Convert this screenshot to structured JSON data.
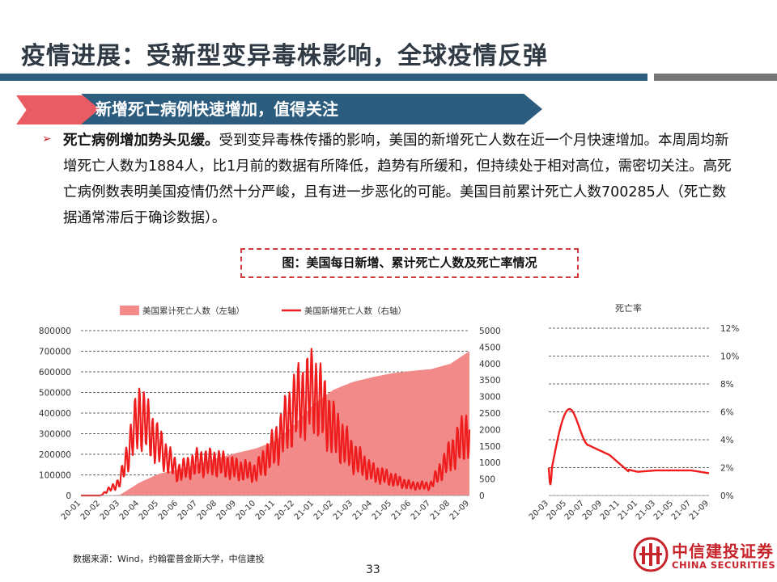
{
  "header": {
    "title": "疫情进展：受新型变异毒株影响，全球疫情反弹",
    "subtitle": "新增死亡病例快速增加，值得关注"
  },
  "body": {
    "bold_lead": "死亡病例增加势头见缓。",
    "text": "受到变异毒株传播的影响，美国的新增死亡人数在近一个月快速增加。本周周均新增死亡人数为1884人，比1月前的数据有所降低，趋势有所缓和，但持续处于相对高位，需密切关注。高死亡病例数表明美国疫情仍然十分严峻，且有进一步恶化的可能。美国目前累计死亡人数700285人（死亡数据通常滞后于确诊数据）。"
  },
  "figure": {
    "title": "图：美国每日新增、累计死亡人数及死亡率情况"
  },
  "chart_data": [
    {
      "type": "area+line",
      "legend_position": "top",
      "grid": true,
      "categories": [
        "20-01",
        "20-02",
        "20-03",
        "20-04",
        "20-05",
        "20-06",
        "20-07",
        "20-08",
        "20-09",
        "20-10",
        "20-11",
        "20-12",
        "21-01",
        "21-02",
        "21-03",
        "21-04",
        "21-05",
        "21-06",
        "21-07",
        "21-08",
        "21-09"
      ],
      "y_left": {
        "min": 0,
        "max": 800000,
        "ticks": [
          "0",
          "100000",
          "200000",
          "300000",
          "400000",
          "500000",
          "600000",
          "700000",
          "800000"
        ]
      },
      "y_right": {
        "min": 0,
        "max": 5000,
        "ticks": [
          "0",
          "500",
          "1000",
          "1500",
          "2000",
          "2500",
          "3000",
          "3500",
          "4000",
          "4500",
          "5000"
        ]
      },
      "series": [
        {
          "name": "美国累计死亡人数（左轴）",
          "axis": "left",
          "color": "#f28a8a",
          "values": [
            0,
            0,
            3000,
            62000,
            105000,
            126000,
            152000,
            181000,
            206000,
            228000,
            264000,
            345000,
            445000,
            513000,
            551000,
            574000,
            593000,
            604000,
            613000,
            638000,
            700285
          ]
        },
        {
          "name": "美国新增死亡人数（右轴）",
          "axis": "right",
          "color": "#ee1c1c",
          "values": [
            0,
            0,
            400,
            2500,
            1500,
            700,
            1000,
            1000,
            800,
            700,
            1500,
            2700,
            3200,
            2000,
            1200,
            700,
            500,
            300,
            300,
            1200,
            2000
          ]
        }
      ]
    },
    {
      "type": "line",
      "title": "死亡率",
      "grid": true,
      "categories": [
        "20-03",
        "20-05",
        "20-07",
        "20-09",
        "20-11",
        "21-01",
        "21-03",
        "21-05",
        "21-07",
        "21-09"
      ],
      "y_right": {
        "min": 0,
        "max": 12,
        "ticks": [
          "0%",
          "2%",
          "4%",
          "6%",
          "8%",
          "10%",
          "12%"
        ]
      },
      "series": [
        {
          "color": "#ee1c1c",
          "values": [
            2.0,
            6.0,
            4.0,
            3.0,
            2.0,
            1.7,
            1.8,
            1.8,
            1.8,
            1.6
          ]
        }
      ]
    }
  ],
  "footer": {
    "source": "数据来源：Wind，约翰霍普金斯大学，中信建投",
    "page": "33",
    "logo_cn": "中信建投证券",
    "logo_en": "CHINA SECURITIES"
  }
}
